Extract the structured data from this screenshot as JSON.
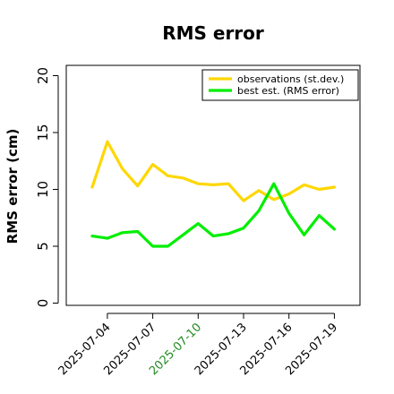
{
  "chart_data": {
    "type": "line",
    "title": "RMS error",
    "xlabel": "",
    "ylabel": "RMS error (cm)",
    "ylim": [
      0,
      21
    ],
    "yticks": [
      "0",
      "5",
      "10",
      "15",
      "20"
    ],
    "x": [
      "2025-07-03",
      "2025-07-04",
      "2025-07-05",
      "2025-07-06",
      "2025-07-07",
      "2025-07-08",
      "2025-07-09",
      "2025-07-10",
      "2025-07-11",
      "2025-07-12",
      "2025-07-13",
      "2025-07-14",
      "2025-07-15",
      "2025-07-16",
      "2025-07-17",
      "2025-07-18",
      "2025-07-19"
    ],
    "xticks": [
      {
        "label": "2025-07-04",
        "color": "#000000"
      },
      {
        "label": "2025-07-07",
        "color": "#000000"
      },
      {
        "label": "2025-07-10",
        "color": "#228B22"
      },
      {
        "label": "2025-07-13",
        "color": "#000000"
      },
      {
        "label": "2025-07-16",
        "color": "#000000"
      },
      {
        "label": "2025-07-19",
        "color": "#000000"
      }
    ],
    "series": [
      {
        "name": "observations (st.dev.)",
        "color": "#FFD700",
        "values": [
          10.2,
          14.2,
          11.8,
          10.3,
          12.2,
          11.2,
          11.0,
          10.5,
          10.4,
          10.5,
          9.0,
          9.9,
          9.1,
          9.6,
          10.4,
          10.0,
          10.2
        ]
      },
      {
        "name": "best est. (RMS error)",
        "color": "#00EE00",
        "values": [
          5.9,
          5.7,
          6.2,
          6.3,
          5.0,
          5.0,
          6.0,
          7.0,
          5.9,
          6.1,
          6.6,
          8.1,
          10.5,
          7.9,
          6.0,
          7.7,
          6.5
        ]
      }
    ],
    "legend_position": "top-right",
    "grid": false
  }
}
